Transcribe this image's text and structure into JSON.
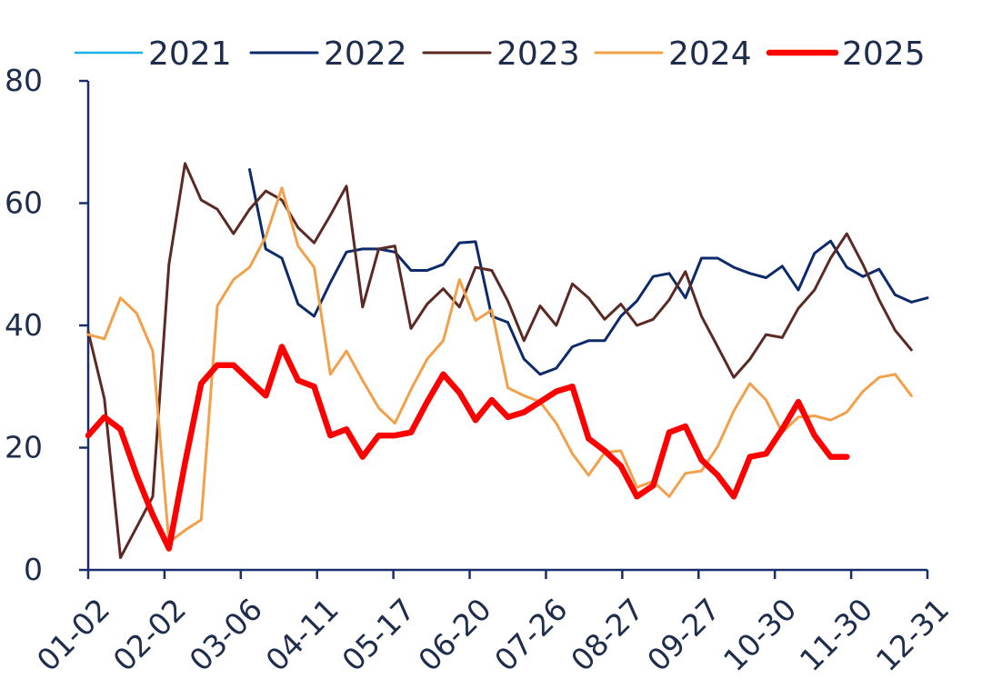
{
  "chart_data": {
    "type": "line",
    "title": "",
    "xlabel": "",
    "ylabel": "",
    "ylim": [
      0,
      80
    ],
    "y_ticks": [
      0,
      20,
      40,
      60,
      80
    ],
    "x_tick_labels": [
      "01-02",
      "02-02",
      "03-06",
      "04-11",
      "05-17",
      "06-20",
      "07-26",
      "08-27",
      "09-27",
      "10-30",
      "11-30",
      "12-31"
    ],
    "x_index_range": [
      1,
      53
    ],
    "legend_position": "top",
    "series": [
      {
        "name": "2021",
        "color": "#1ab0e8",
        "width": 2.5,
        "points": []
      },
      {
        "name": "2022",
        "color": "#0d2a6b",
        "width": 3,
        "points": [
          [
            11,
            65.5
          ],
          [
            12,
            52.5
          ],
          [
            13,
            51
          ],
          [
            14,
            43.5
          ],
          [
            15,
            41.5
          ],
          [
            16,
            47
          ],
          [
            17,
            52
          ],
          [
            18,
            52.5
          ],
          [
            19,
            52.5
          ],
          [
            20,
            52
          ],
          [
            21,
            49
          ],
          [
            22,
            49
          ],
          [
            23,
            50
          ],
          [
            24,
            53.5
          ],
          [
            25,
            53.7
          ],
          [
            26,
            41.5
          ],
          [
            27,
            40.5
          ],
          [
            28,
            34.5
          ],
          [
            29,
            32
          ],
          [
            30,
            33
          ],
          [
            31,
            36.5
          ],
          [
            32,
            37.5
          ],
          [
            33,
            37.5
          ],
          [
            34,
            41.5
          ],
          [
            35,
            44
          ],
          [
            36,
            48
          ],
          [
            37,
            48.5
          ],
          [
            38,
            44.5
          ],
          [
            39,
            51
          ],
          [
            40,
            51
          ],
          [
            41,
            49.5
          ],
          [
            42,
            48.5
          ],
          [
            43,
            47.8
          ],
          [
            44,
            49.7
          ],
          [
            45,
            45.8
          ],
          [
            46,
            51.8
          ],
          [
            47,
            53.8
          ],
          [
            48,
            49.5
          ],
          [
            49,
            48
          ],
          [
            50,
            49.2
          ],
          [
            51,
            45
          ],
          [
            52,
            43.8
          ],
          [
            53,
            44.5
          ]
        ]
      },
      {
        "name": "2023",
        "color": "#5c2a24",
        "width": 3,
        "points": [
          [
            1,
            39
          ],
          [
            2,
            28
          ],
          [
            3,
            2
          ],
          [
            4,
            7
          ],
          [
            5,
            12
          ],
          [
            6,
            50
          ],
          [
            7,
            66.5
          ],
          [
            8,
            60.5
          ],
          [
            9,
            59
          ],
          [
            10,
            55
          ],
          [
            11,
            59
          ],
          [
            12,
            62
          ],
          [
            13,
            60.5
          ],
          [
            14,
            56
          ],
          [
            15,
            53.5
          ],
          [
            16,
            58
          ],
          [
            17,
            62.8
          ],
          [
            18,
            43
          ],
          [
            19,
            52.5
          ],
          [
            20,
            53
          ],
          [
            21,
            39.5
          ],
          [
            22,
            43.5
          ],
          [
            23,
            46
          ],
          [
            24,
            43
          ],
          [
            25,
            49.5
          ],
          [
            26,
            49
          ],
          [
            27,
            44
          ],
          [
            28,
            37.5
          ],
          [
            29,
            43.2
          ],
          [
            30,
            40
          ],
          [
            31,
            46.8
          ],
          [
            32,
            44.5
          ],
          [
            33,
            41
          ],
          [
            34,
            43.5
          ],
          [
            35,
            40
          ],
          [
            36,
            41
          ],
          [
            37,
            44.2
          ],
          [
            38,
            48.8
          ],
          [
            39,
            41.5
          ],
          [
            40,
            36.5
          ],
          [
            41,
            31.5
          ],
          [
            42,
            34.5
          ],
          [
            43,
            38.5
          ],
          [
            44,
            38
          ],
          [
            45,
            42.8
          ],
          [
            46,
            45.8
          ],
          [
            47,
            51
          ],
          [
            48,
            55
          ],
          [
            49,
            50
          ],
          [
            50,
            44.2
          ],
          [
            51,
            39.2
          ],
          [
            52,
            36
          ]
        ]
      },
      {
        "name": "2024",
        "color": "#f2a04a",
        "width": 3,
        "points": [
          [
            1,
            38.5
          ],
          [
            2,
            37.8
          ],
          [
            3,
            44.5
          ],
          [
            4,
            42
          ],
          [
            5,
            35.8
          ],
          [
            6,
            4.5
          ],
          [
            7,
            6.5
          ],
          [
            8,
            8.2
          ],
          [
            9,
            43.2
          ],
          [
            10,
            47.5
          ],
          [
            11,
            49.5
          ],
          [
            12,
            54.5
          ],
          [
            13,
            62.5
          ],
          [
            14,
            53
          ],
          [
            15,
            49.5
          ],
          [
            16,
            32
          ],
          [
            17,
            35.8
          ],
          [
            18,
            31
          ],
          [
            19,
            26.5
          ],
          [
            20,
            24
          ],
          [
            21,
            29.5
          ],
          [
            22,
            34.5
          ],
          [
            23,
            37.5
          ],
          [
            24,
            47.5
          ],
          [
            25,
            40.8
          ],
          [
            26,
            42.5
          ],
          [
            27,
            29.8
          ],
          [
            28,
            28.5
          ],
          [
            29,
            27.5
          ],
          [
            30,
            24
          ],
          [
            31,
            19
          ],
          [
            32,
            15.5
          ],
          [
            33,
            19.2
          ],
          [
            34,
            19.5
          ],
          [
            35,
            13.5
          ],
          [
            36,
            14.5
          ],
          [
            37,
            12
          ],
          [
            38,
            15.8
          ],
          [
            39,
            16.2
          ],
          [
            40,
            20.2
          ],
          [
            41,
            26
          ],
          [
            42,
            30.5
          ],
          [
            43,
            27.8
          ],
          [
            44,
            22.5
          ],
          [
            45,
            25
          ],
          [
            46,
            25.2
          ],
          [
            47,
            24.5
          ],
          [
            48,
            25.8
          ],
          [
            49,
            29.2
          ],
          [
            50,
            31.5
          ],
          [
            51,
            32
          ],
          [
            52,
            28.5
          ]
        ]
      },
      {
        "name": "2025",
        "color": "#ff0000",
        "width": 6.5,
        "points": [
          [
            1,
            22
          ],
          [
            2,
            25
          ],
          [
            3,
            23
          ],
          [
            4,
            15.5
          ],
          [
            5,
            9
          ],
          [
            6,
            3.5
          ],
          [
            7,
            17.5
          ],
          [
            8,
            30.5
          ],
          [
            9,
            33.5
          ],
          [
            10,
            33.5
          ],
          [
            11,
            31
          ],
          [
            12,
            28.5
          ],
          [
            13,
            36.5
          ],
          [
            14,
            31
          ],
          [
            15,
            30
          ],
          [
            16,
            22
          ],
          [
            17,
            23
          ],
          [
            18,
            18.5
          ],
          [
            19,
            22
          ],
          [
            20,
            22
          ],
          [
            21,
            22.5
          ],
          [
            22,
            27.5
          ],
          [
            23,
            32
          ],
          [
            24,
            29
          ],
          [
            25,
            24.5
          ],
          [
            26,
            27.8
          ],
          [
            27,
            25
          ],
          [
            28,
            25.8
          ],
          [
            29,
            27.5
          ],
          [
            30,
            29.2
          ],
          [
            31,
            30
          ],
          [
            32,
            21.5
          ],
          [
            33,
            19.5
          ],
          [
            34,
            17
          ],
          [
            35,
            12
          ],
          [
            36,
            13.8
          ],
          [
            37,
            22.5
          ],
          [
            38,
            23.5
          ],
          [
            39,
            18
          ],
          [
            40,
            15.5
          ],
          [
            41,
            12
          ],
          [
            42,
            18.5
          ],
          [
            43,
            19
          ],
          [
            44,
            23
          ],
          [
            45,
            27.5
          ],
          [
            46,
            22
          ],
          [
            47,
            18.5
          ],
          [
            48,
            18.5
          ]
        ]
      }
    ]
  }
}
